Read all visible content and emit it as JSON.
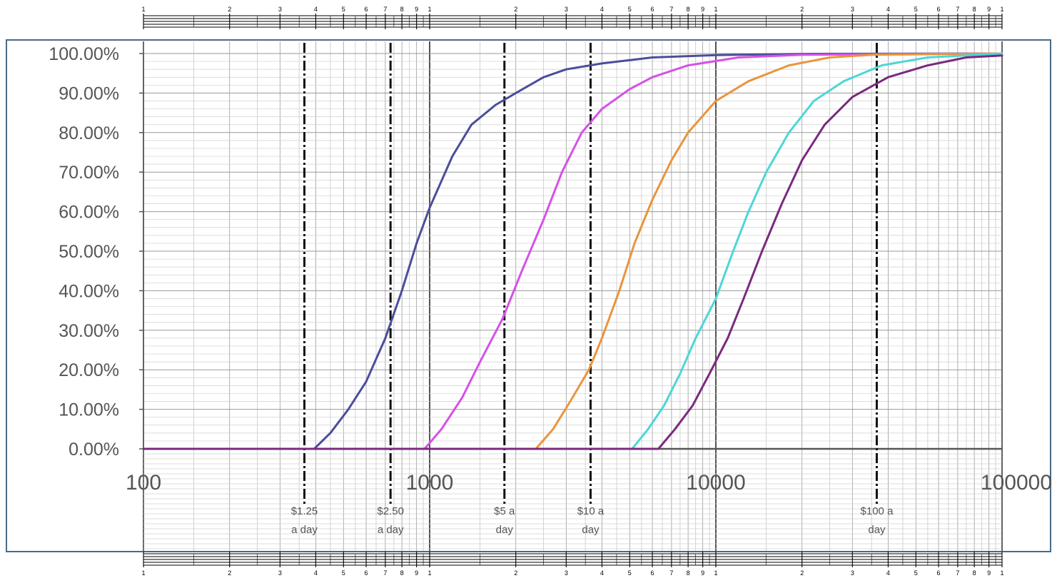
{
  "chart_data": {
    "type": "line",
    "x_scale": "log",
    "xlim": [
      100,
      100000
    ],
    "ylim": [
      0,
      100
    ],
    "y_ticks": [
      "0.00%",
      "10.00%",
      "20.00%",
      "30.00%",
      "40.00%",
      "50.00%",
      "60.00%",
      "70.00%",
      "80.00%",
      "90.00%",
      "100.00%"
    ],
    "x_ticks": [
      {
        "value": 100,
        "label": "100"
      },
      {
        "value": 1000,
        "label": "1000"
      },
      {
        "value": 10000,
        "label": "10000"
      },
      {
        "value": 100000,
        "label": "100000"
      }
    ],
    "ruler_labels": [
      "1",
      "2",
      "3",
      "4",
      "5",
      "6",
      "7",
      "8",
      "9",
      "1"
    ],
    "grid": true,
    "reference_lines": [
      {
        "x": 365,
        "label_lines": [
          "$1.25",
          "a day"
        ]
      },
      {
        "x": 730,
        "label_lines": [
          "$2.50",
          "a day"
        ]
      },
      {
        "x": 1825,
        "label_lines": [
          "$5 a",
          "day"
        ]
      },
      {
        "x": 3650,
        "label_lines": [
          "$10 a",
          "day"
        ]
      },
      {
        "x": 36500,
        "label_lines": [
          "$100 a",
          "day"
        ]
      }
    ],
    "series": [
      {
        "color": "#4a4e9a",
        "points": [
          [
            100,
            0
          ],
          [
            395,
            0
          ],
          [
            450,
            4
          ],
          [
            520,
            10
          ],
          [
            600,
            17
          ],
          [
            700,
            28
          ],
          [
            800,
            40
          ],
          [
            900,
            52
          ],
          [
            1000,
            61
          ],
          [
            1200,
            74
          ],
          [
            1400,
            82
          ],
          [
            1700,
            87
          ],
          [
            2000,
            90
          ],
          [
            2500,
            94
          ],
          [
            3000,
            96
          ],
          [
            4000,
            97.5
          ],
          [
            6000,
            99
          ],
          [
            10000,
            99.6
          ],
          [
            20000,
            99.9
          ],
          [
            100000,
            100
          ]
        ]
      },
      {
        "color": "#d452e6",
        "points": [
          [
            100,
            0
          ],
          [
            960,
            0
          ],
          [
            1100,
            5
          ],
          [
            1300,
            13
          ],
          [
            1500,
            22
          ],
          [
            1800,
            33
          ],
          [
            2100,
            45
          ],
          [
            2500,
            58
          ],
          [
            2900,
            70
          ],
          [
            3400,
            80
          ],
          [
            4000,
            86
          ],
          [
            5000,
            91
          ],
          [
            6000,
            94
          ],
          [
            8000,
            97
          ],
          [
            12000,
            99
          ],
          [
            20000,
            99.7
          ],
          [
            100000,
            100
          ]
        ]
      },
      {
        "color": "#e8953e",
        "points": [
          [
            100,
            0
          ],
          [
            2350,
            0
          ],
          [
            2700,
            5
          ],
          [
            3100,
            12
          ],
          [
            3600,
            20
          ],
          [
            4000,
            28
          ],
          [
            4600,
            40
          ],
          [
            5200,
            52
          ],
          [
            6000,
            63
          ],
          [
            7000,
            73
          ],
          [
            8000,
            80
          ],
          [
            10000,
            88
          ],
          [
            13000,
            93
          ],
          [
            18000,
            97
          ],
          [
            25000,
            99
          ],
          [
            35000,
            99.7
          ],
          [
            100000,
            100
          ]
        ]
      },
      {
        "color": "#4dd6d8",
        "points": [
          [
            100,
            0
          ],
          [
            5100,
            0
          ],
          [
            5800,
            5
          ],
          [
            6600,
            11
          ],
          [
            7500,
            19
          ],
          [
            8500,
            28
          ],
          [
            10000,
            38
          ],
          [
            11500,
            50
          ],
          [
            13000,
            60
          ],
          [
            15000,
            70
          ],
          [
            18000,
            80
          ],
          [
            22000,
            88
          ],
          [
            28000,
            93
          ],
          [
            38000,
            97
          ],
          [
            55000,
            99
          ],
          [
            100000,
            100
          ]
        ]
      },
      {
        "color": "#7a2a7e",
        "points": [
          [
            100,
            0
          ],
          [
            6300,
            0
          ],
          [
            7200,
            5
          ],
          [
            8300,
            11
          ],
          [
            9500,
            19
          ],
          [
            11000,
            28
          ],
          [
            12500,
            38
          ],
          [
            14500,
            50
          ],
          [
            17000,
            62
          ],
          [
            20000,
            73
          ],
          [
            24000,
            82
          ],
          [
            30000,
            89
          ],
          [
            40000,
            94
          ],
          [
            55000,
            97
          ],
          [
            75000,
            99
          ],
          [
            100000,
            99.5
          ]
        ]
      }
    ]
  }
}
